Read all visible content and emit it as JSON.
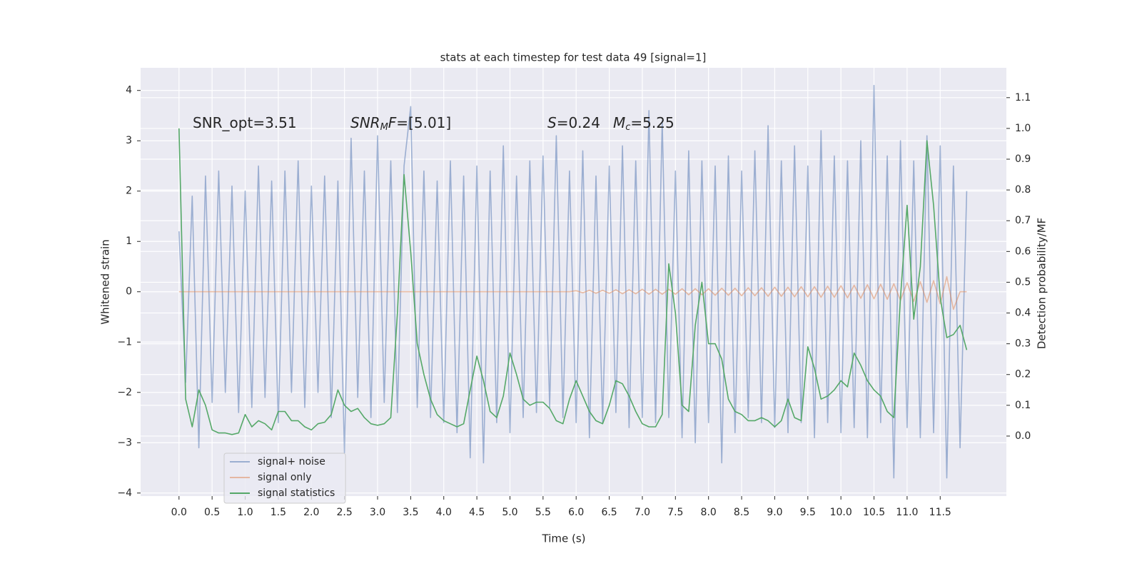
{
  "chart_data": {
    "type": "line",
    "title": "stats at each timestep for test data 49 [signal=1]",
    "xlabel": "Time (s)",
    "ylabel": "Whitened strain",
    "y2label": "Detection probability/MF",
    "annotations": [
      [
        "SNR_opt=3.51"
      ],
      [
        "SNR",
        "M",
        "F",
        "=[5.01]"
      ],
      [
        "S",
        "=0.24"
      ],
      [
        "M",
        "c",
        "=5.25"
      ]
    ],
    "grid": true,
    "legend": "lower left",
    "xlim": [
      -0.58,
      12.5
    ],
    "ylim": [
      -4.06,
      4.45
    ],
    "y2lim": [
      -0.195,
      1.197
    ],
    "xticks": [
      {
        "value": 0,
        "label": "0.0"
      },
      {
        "value": 0.5,
        "label": "0.5"
      },
      {
        "value": 1,
        "label": "1.0"
      },
      {
        "value": 1.5,
        "label": "1.5"
      },
      {
        "value": 2,
        "label": "2.0"
      },
      {
        "value": 2.5,
        "label": "2.5"
      },
      {
        "value": 3,
        "label": "3.0"
      },
      {
        "value": 3.5,
        "label": "3.5"
      },
      {
        "value": 4,
        "label": "4.0"
      },
      {
        "value": 4.5,
        "label": "4.5"
      },
      {
        "value": 5,
        "label": "5.0"
      },
      {
        "value": 5.5,
        "label": "5.5"
      },
      {
        "value": 6,
        "label": "6.0"
      },
      {
        "value": 6.5,
        "label": "6.5"
      },
      {
        "value": 7,
        "label": "7.0"
      },
      {
        "value": 7.5,
        "label": "7.5"
      },
      {
        "value": 8,
        "label": "8.0"
      },
      {
        "value": 8.5,
        "label": "8.5"
      },
      {
        "value": 9,
        "label": "9.0"
      },
      {
        "value": 9.5,
        "label": "9.5"
      },
      {
        "value": 10,
        "label": "10.0"
      },
      {
        "value": 10.5,
        "label": "10.5"
      },
      {
        "value": 11,
        "label": "11.0"
      },
      {
        "value": 11.5,
        "label": "11.5"
      }
    ],
    "yticks": [
      -4,
      -3,
      -2,
      -1,
      0,
      1,
      2,
      3,
      4
    ],
    "y2ticks": [
      {
        "value": 0,
        "label": "0.0"
      },
      {
        "value": 0.1,
        "label": "0.1"
      },
      {
        "value": 0.2,
        "label": "0.2"
      },
      {
        "value": 0.3,
        "label": "0.3"
      },
      {
        "value": 0.4,
        "label": "0.4"
      },
      {
        "value": 0.5,
        "label": "0.5"
      },
      {
        "value": 0.6,
        "label": "0.6"
      },
      {
        "value": 0.7,
        "label": "0.7"
      },
      {
        "value": 0.8,
        "label": "0.8"
      },
      {
        "value": 0.9,
        "label": "0.9"
      },
      {
        "value": 1,
        "label": "1.0"
      },
      {
        "value": 1.1,
        "label": "1.1"
      }
    ],
    "x": [
      0,
      0.1,
      0.2,
      0.3,
      0.4,
      0.5,
      0.6,
      0.7,
      0.8,
      0.9,
      1,
      1.1,
      1.2,
      1.3,
      1.4,
      1.5,
      1.6,
      1.7,
      1.8,
      1.9,
      2,
      2.1,
      2.2,
      2.3,
      2.4,
      2.5,
      2.6,
      2.7,
      2.8,
      2.9,
      3,
      3.1,
      3.2,
      3.3,
      3.4,
      3.5,
      3.6,
      3.7,
      3.8,
      3.9,
      4,
      4.1,
      4.2,
      4.3,
      4.4,
      4.5,
      4.6,
      4.7,
      4.8,
      4.9,
      5,
      5.1,
      5.2,
      5.3,
      5.4,
      5.5,
      5.6,
      5.7,
      5.8,
      5.9,
      6,
      6.1,
      6.2,
      6.3,
      6.4,
      6.5,
      6.6,
      6.7,
      6.8,
      6.9,
      7,
      7.1,
      7.2,
      7.3,
      7.4,
      7.5,
      7.6,
      7.7,
      7.8,
      7.9,
      8,
      8.1,
      8.2,
      8.3,
      8.4,
      8.5,
      8.6,
      8.7,
      8.8,
      8.9,
      9,
      9.1,
      9.2,
      9.3,
      9.4,
      9.5,
      9.6,
      9.7,
      9.8,
      9.9,
      10,
      10.1,
      10.2,
      10.3,
      10.4,
      10.5,
      10.6,
      10.7,
      10.8,
      10.9,
      11,
      11.1,
      11.2,
      11.3,
      11.4,
      11.5,
      11.6,
      11.7,
      11.8,
      11.9
    ],
    "series": [
      {
        "name": "signal+ noise",
        "color": "#4c72b0",
        "opacity": 0.5,
        "axis": "y",
        "values": [
          1.2,
          -1.8,
          1.9,
          -3.1,
          2.3,
          -2.2,
          2.4,
          -2.0,
          2.1,
          -2.4,
          2.0,
          -2.3,
          2.5,
          -2.1,
          2.2,
          -2.6,
          2.4,
          -2.0,
          2.6,
          -2.3,
          2.1,
          -2.0,
          2.3,
          -2.5,
          2.2,
          -3.2,
          3.05,
          -2.1,
          2.4,
          -2.5,
          3.1,
          -2.2,
          2.6,
          -2.4,
          2.5,
          3.68,
          -2.3,
          2.4,
          -2.5,
          2.2,
          -2.6,
          2.6,
          -2.8,
          2.3,
          -3.3,
          2.5,
          -3.4,
          2.4,
          -2.6,
          2.9,
          -2.8,
          2.3,
          -2.5,
          2.6,
          -2.4,
          2.7,
          -2.3,
          3.1,
          -2.5,
          2.4,
          -2.6,
          2.8,
          -2.9,
          2.3,
          -2.6,
          2.5,
          -2.4,
          2.9,
          -2.7,
          2.6,
          -2.5,
          3.6,
          -2.6,
          3.4,
          -2.5,
          2.4,
          -2.9,
          2.8,
          -3.0,
          2.6,
          -2.6,
          2.5,
          -3.4,
          2.7,
          -2.8,
          2.4,
          -2.5,
          2.8,
          -2.6,
          3.3,
          -2.7,
          2.6,
          -2.8,
          2.9,
          -2.6,
          2.5,
          -2.9,
          3.2,
          -2.6,
          2.7,
          -2.8,
          2.6,
          -2.7,
          3.0,
          -2.9,
          4.1,
          -2.6,
          2.7,
          -3.7,
          3.0,
          -2.7,
          2.6,
          -2.9,
          3.1,
          -2.8,
          2.9,
          -3.7,
          2.5,
          -3.1,
          2.0
        ]
      },
      {
        "name": "signal only",
        "color": "#dd8452",
        "opacity": 0.5,
        "axis": "y",
        "values": [
          0,
          0,
          0,
          0,
          0,
          0,
          0,
          0,
          0,
          0,
          0,
          0,
          0,
          0,
          0,
          0,
          0,
          0,
          0,
          0,
          0,
          0,
          0,
          0,
          0,
          0,
          0,
          0,
          0,
          0,
          0,
          0,
          0,
          0,
          0,
          0,
          0,
          0,
          0,
          0,
          0,
          0,
          0,
          0,
          0,
          0,
          0,
          0,
          0,
          0,
          0,
          0,
          0,
          0,
          0,
          0,
          0,
          0,
          0,
          0,
          0.02,
          -0.02,
          0.03,
          -0.03,
          0.03,
          -0.03,
          0.04,
          -0.04,
          0.04,
          -0.04,
          0.05,
          -0.05,
          0.05,
          -0.05,
          0.05,
          -0.05,
          0.06,
          -0.06,
          0.06,
          -0.06,
          0.06,
          -0.07,
          0.07,
          -0.07,
          0.07,
          -0.08,
          0.08,
          -0.08,
          0.08,
          -0.09,
          0.09,
          -0.09,
          0.09,
          -0.1,
          0.1,
          -0.1,
          0.1,
          -0.11,
          0.11,
          -0.11,
          0.12,
          -0.12,
          0.13,
          -0.13,
          0.14,
          -0.14,
          0.15,
          -0.15,
          0.16,
          -0.17,
          0.18,
          -0.19,
          0.2,
          -0.21,
          0.22,
          -0.24,
          0.3,
          -0.35,
          0,
          0
        ]
      },
      {
        "name": "signal statistics",
        "color": "#55a868",
        "opacity": 1,
        "axis": "y2",
        "values": [
          1.0,
          0.12,
          0.03,
          0.15,
          0.1,
          0.02,
          0.01,
          0.01,
          0.005,
          0.01,
          0.07,
          0.03,
          0.05,
          0.04,
          0.02,
          0.08,
          0.08,
          0.05,
          0.05,
          0.03,
          0.02,
          0.04,
          0.045,
          0.07,
          0.15,
          0.1,
          0.08,
          0.09,
          0.06,
          0.04,
          0.035,
          0.04,
          0.06,
          0.4,
          0.85,
          0.6,
          0.3,
          0.2,
          0.12,
          0.07,
          0.05,
          0.04,
          0.03,
          0.04,
          0.15,
          0.26,
          0.18,
          0.08,
          0.06,
          0.13,
          0.27,
          0.2,
          0.12,
          0.1,
          0.11,
          0.11,
          0.09,
          0.05,
          0.04,
          0.12,
          0.18,
          0.13,
          0.08,
          0.05,
          0.04,
          0.1,
          0.18,
          0.17,
          0.13,
          0.08,
          0.04,
          0.03,
          0.03,
          0.07,
          0.56,
          0.4,
          0.1,
          0.08,
          0.36,
          0.5,
          0.3,
          0.3,
          0.25,
          0.12,
          0.08,
          0.07,
          0.05,
          0.05,
          0.06,
          0.05,
          0.03,
          0.05,
          0.12,
          0.06,
          0.05,
          0.29,
          0.22,
          0.12,
          0.13,
          0.15,
          0.18,
          0.16,
          0.27,
          0.23,
          0.18,
          0.15,
          0.13,
          0.08,
          0.06,
          0.45,
          0.75,
          0.38,
          0.55,
          0.96,
          0.75,
          0.45,
          0.32,
          0.33,
          0.36,
          0.28
        ]
      }
    ]
  }
}
